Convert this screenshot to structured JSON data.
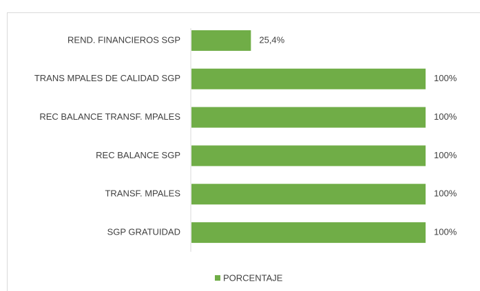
{
  "chart_data": {
    "type": "barh",
    "categories": [
      "REND. FINANCIEROS SGP",
      "TRANS MPALES DE CALIDAD  SGP",
      "REC BALANCE TRANSF. MPALES",
      "REC BALANCE SGP",
      "TRANSF. MPALES",
      "SGP GRATUIDAD"
    ],
    "series": [
      {
        "name": "PORCENTAJE",
        "color": "#70ad47",
        "values": [
          25.4,
          100,
          100,
          100,
          100,
          100
        ],
        "value_labels": [
          "25,4%",
          "100%",
          "100%",
          "100%",
          "100%",
          "100%"
        ]
      }
    ],
    "xlim": [
      0,
      100
    ],
    "legend": "bottom"
  }
}
